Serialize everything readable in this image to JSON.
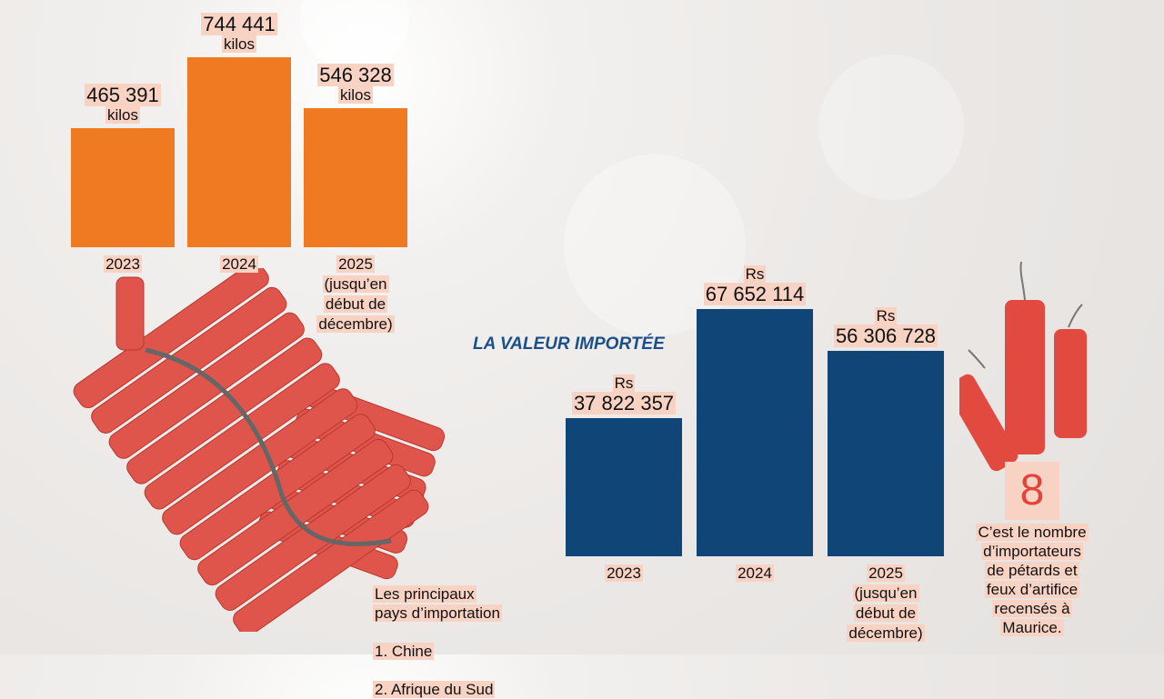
{
  "chart_data": [
    {
      "type": "bar",
      "categories": [
        "2023",
        "2024",
        "2025\n(jusqu’en\ndébut de\ndécembre)"
      ],
      "values": [
        465391,
        744441,
        546328
      ],
      "value_labels": [
        "465 391",
        "744 441",
        "546 328"
      ],
      "unit_label": "kilos",
      "color": "#f07a21"
    },
    {
      "type": "bar",
      "title": "LA VALEUR IMPORTÉE",
      "categories": [
        "2023",
        "2024",
        "2025\n(jusqu’en\ndébut de\ndécembre)"
      ],
      "values": [
        37822357,
        67652114,
        56306728
      ],
      "value_labels": [
        "37 822 357",
        "67 652 114",
        "56 306 728"
      ],
      "prefix_label": "Rs",
      "color": "#0f4577"
    }
  ],
  "countries": {
    "heading": "Les principaux\npays d’importation",
    "items": [
      "1. Chine",
      "2. Afrique du Sud"
    ]
  },
  "stat": {
    "value": 8,
    "caption": "C’est le nombre\nd’importateurs\nde pétards et\nfeux d’artifice\nrecensés à\nMaurice."
  }
}
